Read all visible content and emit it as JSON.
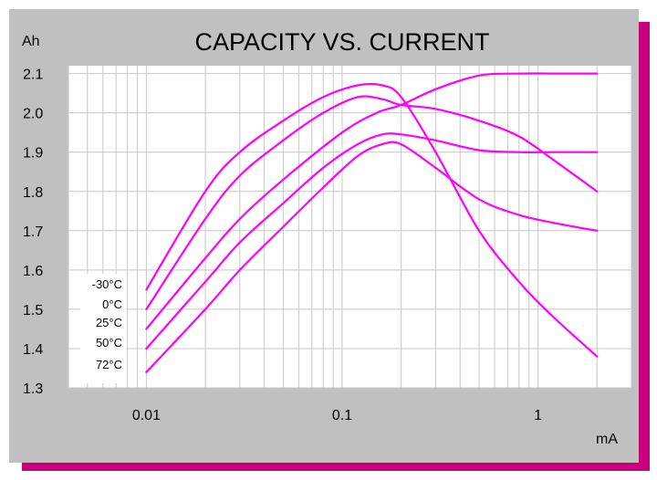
{
  "colors": {
    "panel": "#c0c0c0",
    "shadow": "#c8007c",
    "plot_bg": "#ffffff",
    "grid": "#c8c8c8",
    "curve": "#ff00ff",
    "text": "#000000"
  },
  "chart_data": {
    "type": "line",
    "title": "CAPACITY VS. CURRENT",
    "ylabel": "Ah",
    "xlabel": "mA",
    "x_scale": "log",
    "xlim": [
      0.004,
      3
    ],
    "ylim": [
      1.3,
      2.12
    ],
    "grid": true,
    "x_ticks": [
      {
        "value": 0.01,
        "label": "0.01"
      },
      {
        "value": 0.1,
        "label": "0.1"
      },
      {
        "value": 1,
        "label": "1"
      }
    ],
    "y_ticks": [
      {
        "value": 1.3,
        "label": "1.3"
      },
      {
        "value": 1.4,
        "label": "1.4"
      },
      {
        "value": 1.5,
        "label": "1.5"
      },
      {
        "value": 1.6,
        "label": "1.6"
      },
      {
        "value": 1.7,
        "label": "1.7"
      },
      {
        "value": 1.8,
        "label": "1.8"
      },
      {
        "value": 1.9,
        "label": "1.9"
      },
      {
        "value": 2.0,
        "label": "2.0"
      },
      {
        "value": 2.1,
        "label": "2.1"
      }
    ],
    "series": [
      {
        "name": "-30°C",
        "points": [
          [
            0.01,
            1.55
          ],
          [
            0.02,
            1.8
          ],
          [
            0.03,
            1.9
          ],
          [
            0.05,
            1.98
          ],
          [
            0.08,
            2.04
          ],
          [
            0.12,
            2.07
          ],
          [
            0.16,
            2.07
          ],
          [
            0.2,
            2.04
          ],
          [
            0.3,
            1.9
          ],
          [
            0.5,
            1.7
          ],
          [
            0.8,
            1.57
          ],
          [
            1.2,
            1.48
          ],
          [
            2,
            1.38
          ]
        ]
      },
      {
        "name": "0°C",
        "points": [
          [
            0.01,
            1.5
          ],
          [
            0.02,
            1.73
          ],
          [
            0.03,
            1.84
          ],
          [
            0.05,
            1.93
          ],
          [
            0.08,
            2.0
          ],
          [
            0.12,
            2.04
          ],
          [
            0.16,
            2.035
          ],
          [
            0.2,
            2.02
          ],
          [
            0.3,
            2.01
          ],
          [
            0.5,
            1.98
          ],
          [
            0.8,
            1.94
          ],
          [
            1.2,
            1.88
          ],
          [
            2,
            1.8
          ]
        ]
      },
      {
        "name": "25°C",
        "points": [
          [
            0.01,
            1.45
          ],
          [
            0.02,
            1.63
          ],
          [
            0.03,
            1.73
          ],
          [
            0.05,
            1.83
          ],
          [
            0.1,
            1.95
          ],
          [
            0.15,
            2.0
          ],
          [
            0.2,
            2.02
          ],
          [
            0.3,
            2.06
          ],
          [
            0.5,
            2.095
          ],
          [
            0.8,
            2.1
          ],
          [
            1.2,
            2.1
          ],
          [
            2,
            2.1
          ]
        ]
      },
      {
        "name": "50°C",
        "points": [
          [
            0.01,
            1.4
          ],
          [
            0.02,
            1.57
          ],
          [
            0.03,
            1.67
          ],
          [
            0.05,
            1.77
          ],
          [
            0.08,
            1.86
          ],
          [
            0.12,
            1.92
          ],
          [
            0.16,
            1.945
          ],
          [
            0.2,
            1.945
          ],
          [
            0.3,
            1.93
          ],
          [
            0.5,
            1.905
          ],
          [
            0.8,
            1.9
          ],
          [
            1.2,
            1.9
          ],
          [
            2,
            1.9
          ]
        ]
      },
      {
        "name": "72°C",
        "points": [
          [
            0.01,
            1.34
          ],
          [
            0.02,
            1.5
          ],
          [
            0.03,
            1.6
          ],
          [
            0.05,
            1.71
          ],
          [
            0.08,
            1.81
          ],
          [
            0.12,
            1.89
          ],
          [
            0.16,
            1.92
          ],
          [
            0.2,
            1.92
          ],
          [
            0.3,
            1.86
          ],
          [
            0.5,
            1.78
          ],
          [
            0.8,
            1.74
          ],
          [
            1.2,
            1.72
          ],
          [
            2,
            1.7
          ]
        ]
      }
    ]
  }
}
